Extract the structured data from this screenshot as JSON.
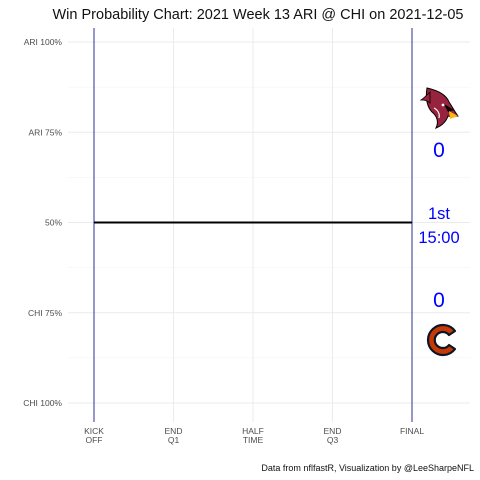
{
  "chart_data": {
    "type": "line",
    "title": "Win Probability Chart: 2021 Week 13 ARI @ CHI on 2021-12-05",
    "caption": "Data from nflfastR, Visualization by @LeeSharpeNFL",
    "y_ticks": [
      {
        "label": "ARI 100%",
        "value": 1.0
      },
      {
        "label": "ARI 75%",
        "value": 0.75
      },
      {
        "label": "50%",
        "value": 0.5
      },
      {
        "label": "CHI 75%",
        "value": 0.25
      },
      {
        "label": "CHI 100%",
        "value": 0.0
      }
    ],
    "x_ticks": [
      {
        "lines": [
          "KICK",
          "OFF"
        ],
        "value": 0
      },
      {
        "lines": [
          "END",
          "Q1"
        ],
        "value": 900
      },
      {
        "lines": [
          "HALF",
          "TIME"
        ],
        "value": 1800
      },
      {
        "lines": [
          "END",
          "Q3"
        ],
        "value": 2700
      },
      {
        "lines": [
          "FINAL"
        ],
        "value": 3600
      }
    ],
    "xlim": [
      0,
      3600
    ],
    "ylim": [
      0,
      1
    ],
    "grid": true,
    "series": [
      {
        "x": [
          0,
          3600
        ],
        "y": [
          0.5,
          0.5
        ],
        "color": "#000000"
      }
    ],
    "vlines": [
      {
        "x": 0,
        "color": "#1a1a8c"
      },
      {
        "x": 3600,
        "color": "#1a1a8c"
      }
    ],
    "away_team": {
      "abbr": "ARI",
      "score": "0",
      "logo": "cardinals-logo"
    },
    "home_team": {
      "abbr": "CHI",
      "score": "0",
      "logo": "bears-logo"
    },
    "game_clock": {
      "quarter": "1st",
      "time": "15:00"
    },
    "accent_color": "#0000ff"
  }
}
